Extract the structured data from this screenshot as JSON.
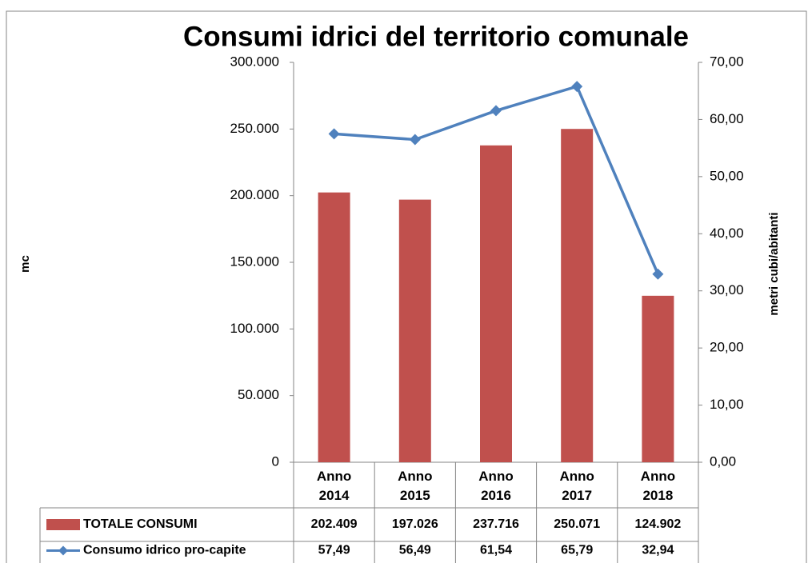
{
  "chart_data": {
    "type": "bar",
    "title": "Consumi idrici del territorio comunale",
    "categories": [
      "Anno 2014",
      "Anno 2015",
      "Anno 2016",
      "Anno 2017",
      "Anno 2018"
    ],
    "series": [
      {
        "name": "TOTALE CONSUMI",
        "type": "bar",
        "color": "#c0504d",
        "values": [
          202409,
          197026,
          237716,
          250071,
          124902
        ],
        "value_labels": [
          "202.409",
          "197.026",
          "237.716",
          "250.071",
          "124.902"
        ]
      },
      {
        "name": "Consumo idrico pro-capite",
        "type": "line",
        "axis": "y2",
        "color": "#4f81bd",
        "values": [
          57.49,
          56.49,
          61.54,
          65.79,
          32.94
        ],
        "value_labels": [
          "57,49",
          "56,49",
          "61,54",
          "65,79",
          "32,94"
        ]
      }
    ],
    "ylabel": "mc",
    "y2label": "metri cubi/abitanti",
    "ylim": [
      0,
      300000
    ],
    "yticks": [
      0,
      {
        "value": 50000,
        "label": "50.000"
      },
      {
        "value": 100000,
        "label": "100.000"
      },
      {
        "value": 150000,
        "label": "150.000"
      },
      {
        "value": 200000,
        "label": "200.000"
      },
      {
        "value": 250000,
        "label": "250.000"
      },
      {
        "value": 300000,
        "label": "300.000"
      }
    ],
    "y2lim": [
      0,
      70
    ],
    "y2ticks": [
      {
        "value": 0,
        "label": "0,00"
      },
      {
        "value": 10,
        "label": "10,00"
      },
      {
        "value": 20,
        "label": "20,00"
      },
      {
        "value": 30,
        "label": "30,00"
      },
      {
        "value": 40,
        "label": "40,00"
      },
      {
        "value": 50,
        "label": "50,00"
      },
      {
        "value": 60,
        "label": "60,00"
      },
      {
        "value": 70,
        "label": "70,00"
      }
    ],
    "grid": false
  }
}
